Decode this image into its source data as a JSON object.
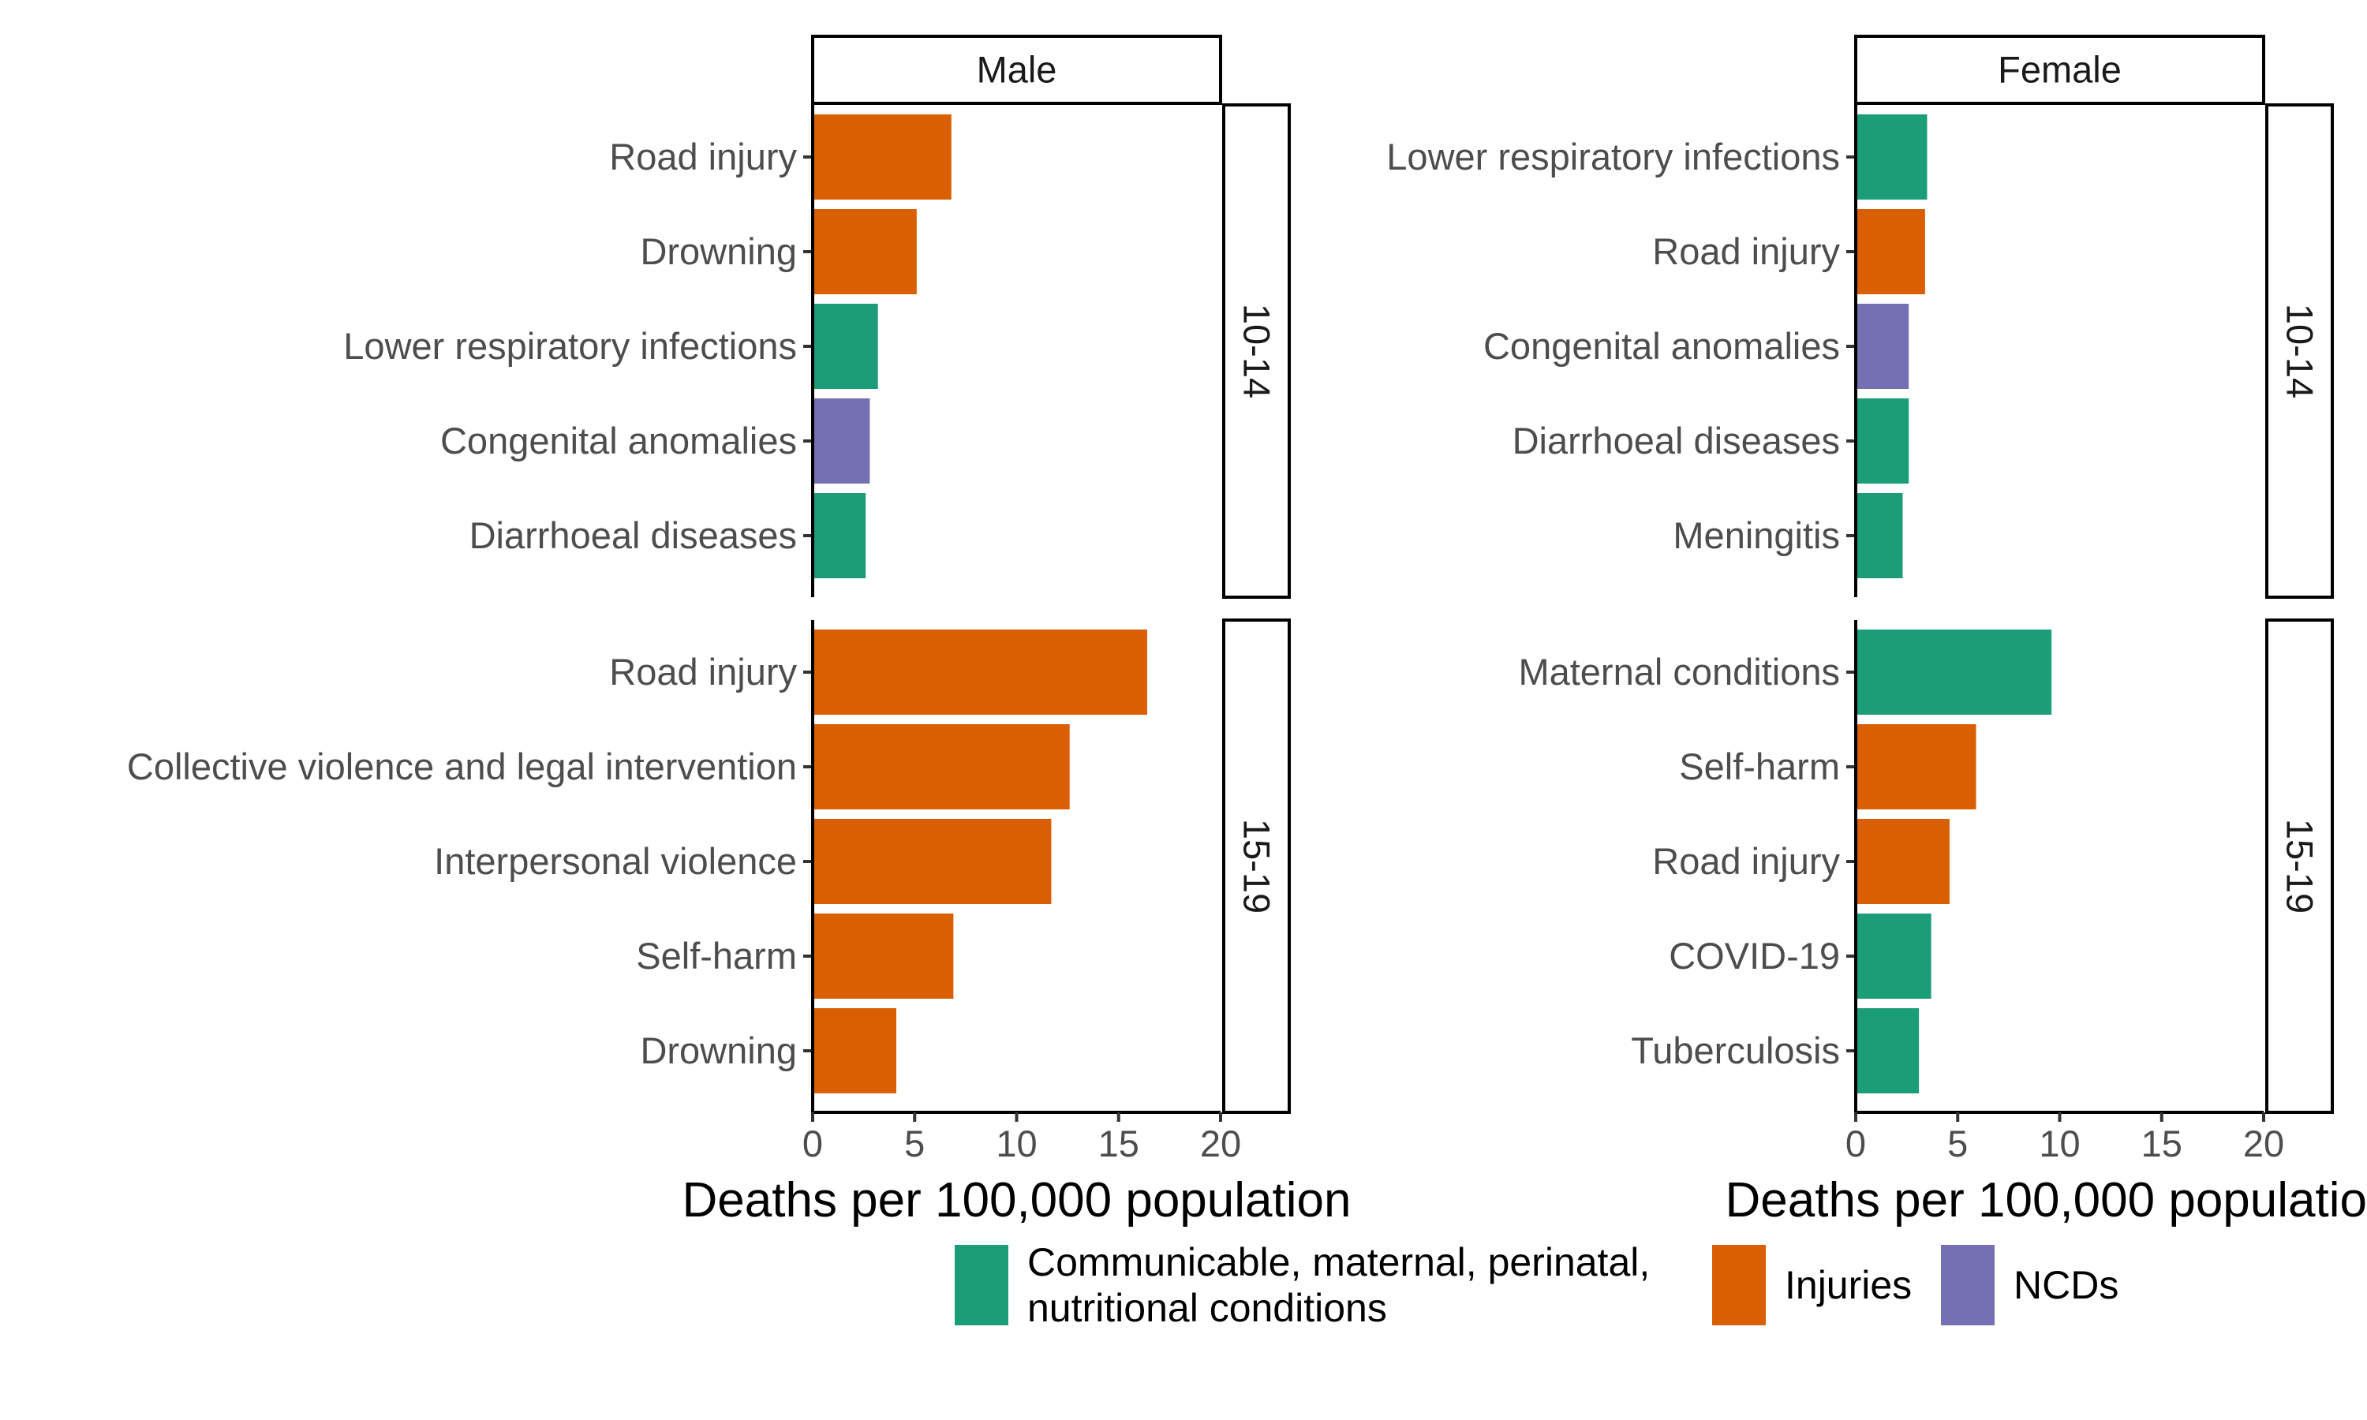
{
  "chart_data": {
    "type": "bar",
    "orientation": "horizontal",
    "xlabel": "Deaths per 100,000 population",
    "xlim": [
      0,
      20
    ],
    "xticks": [
      0,
      5,
      10,
      15,
      20
    ],
    "grid": false,
    "legend_position": "bottom",
    "colors": {
      "communicable": "#1b9e77",
      "injuries": "#d95f02",
      "ncds": "#7570b3"
    },
    "legend": [
      {
        "key": "communicable",
        "label_lines": [
          "Communicable, maternal, perinatal,",
          "nutritional conditions"
        ]
      },
      {
        "key": "injuries",
        "label_lines": [
          "Injuries"
        ]
      },
      {
        "key": "ncds",
        "label_lines": [
          "NCDs"
        ]
      }
    ],
    "columns": [
      "Male",
      "Female"
    ],
    "rows": [
      "10-14",
      "15-19"
    ],
    "panels": [
      {
        "sex": "Male",
        "age": "10-14",
        "bars": [
          {
            "cause": "Road injury",
            "value": 6.8,
            "group": "injuries"
          },
          {
            "cause": "Drowning",
            "value": 5.1,
            "group": "injuries"
          },
          {
            "cause": "Lower respiratory infections",
            "value": 3.2,
            "group": "communicable"
          },
          {
            "cause": "Congenital anomalies",
            "value": 2.8,
            "group": "ncds"
          },
          {
            "cause": "Diarrhoeal diseases",
            "value": 2.6,
            "group": "communicable"
          }
        ]
      },
      {
        "sex": "Female",
        "age": "10-14",
        "bars": [
          {
            "cause": "Lower respiratory infections",
            "value": 3.5,
            "group": "communicable"
          },
          {
            "cause": "Road injury",
            "value": 3.4,
            "group": "injuries"
          },
          {
            "cause": "Congenital anomalies",
            "value": 2.6,
            "group": "ncds"
          },
          {
            "cause": "Diarrhoeal diseases",
            "value": 2.6,
            "group": "communicable"
          },
          {
            "cause": "Meningitis",
            "value": 2.3,
            "group": "communicable"
          }
        ]
      },
      {
        "sex": "Male",
        "age": "15-19",
        "bars": [
          {
            "cause": "Road injury",
            "value": 16.4,
            "group": "injuries"
          },
          {
            "cause": "Collective violence and legal intervention",
            "value": 12.6,
            "group": "injuries"
          },
          {
            "cause": "Interpersonal violence",
            "value": 11.7,
            "group": "injuries"
          },
          {
            "cause": "Self-harm",
            "value": 6.9,
            "group": "injuries"
          },
          {
            "cause": "Drowning",
            "value": 4.1,
            "group": "injuries"
          }
        ]
      },
      {
        "sex": "Female",
        "age": "15-19",
        "bars": [
          {
            "cause": "Maternal conditions",
            "value": 9.6,
            "group": "communicable"
          },
          {
            "cause": "Self-harm",
            "value": 5.9,
            "group": "injuries"
          },
          {
            "cause": "Road injury",
            "value": 4.6,
            "group": "injuries"
          },
          {
            "cause": "COVID-19",
            "value": 3.7,
            "group": "communicable"
          },
          {
            "cause": "Tuberculosis",
            "value": 3.1,
            "group": "communicable"
          }
        ]
      }
    ]
  }
}
